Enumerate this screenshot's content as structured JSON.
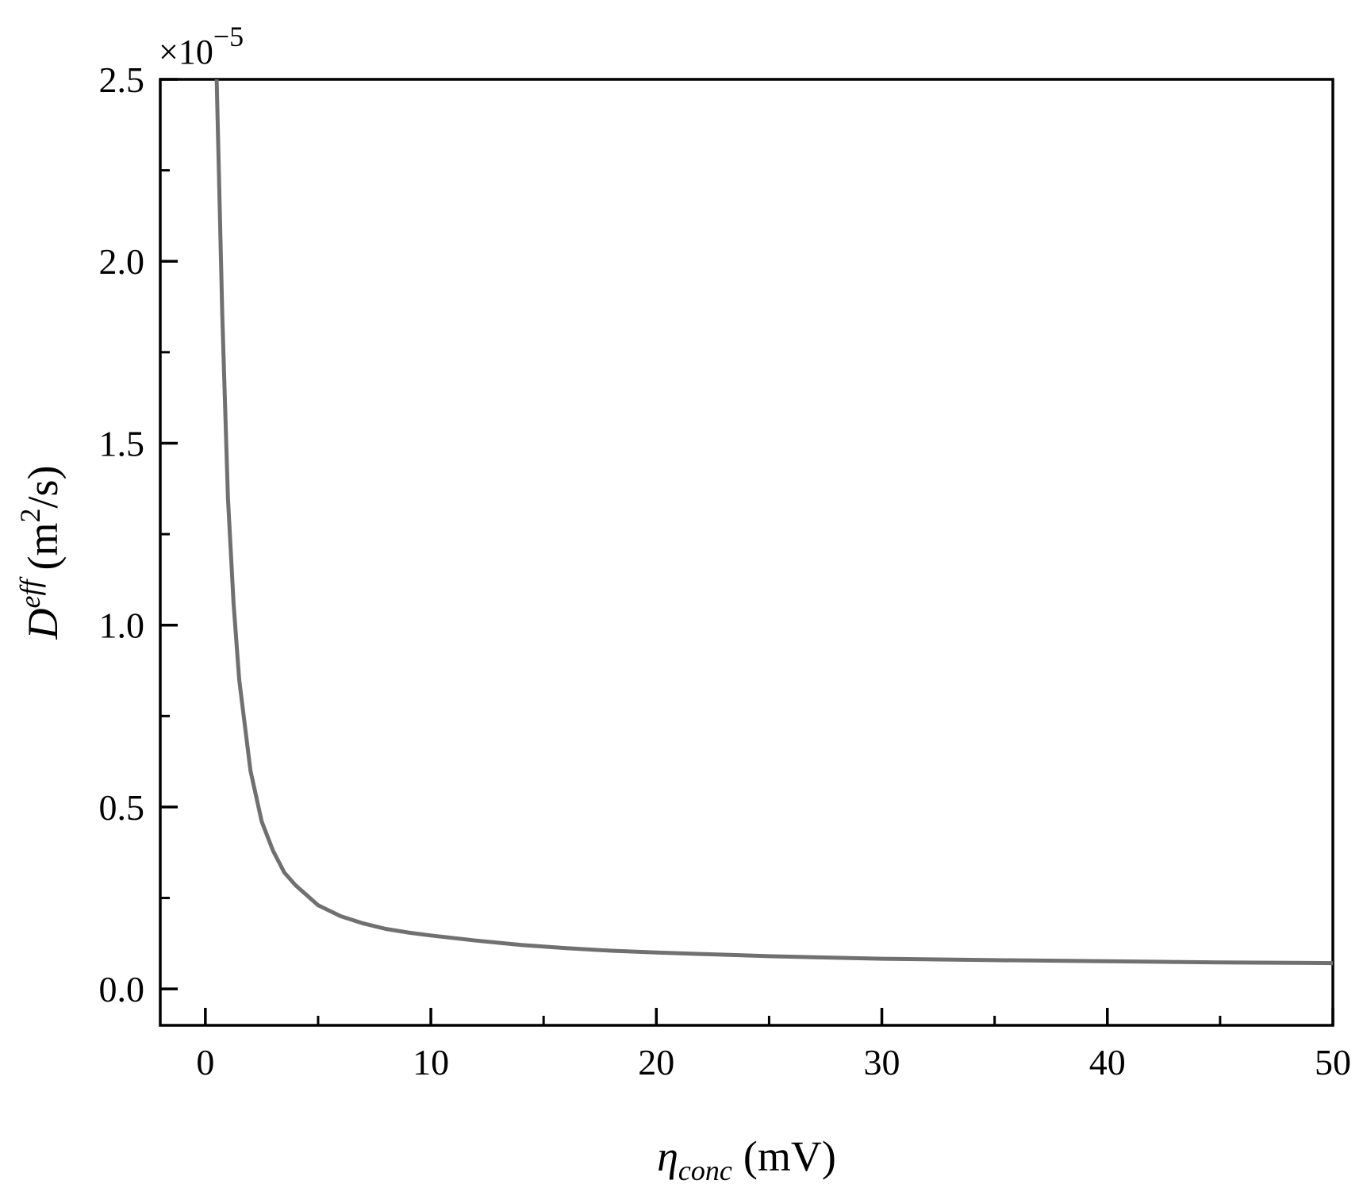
{
  "chart_data": {
    "type": "line",
    "title": "",
    "xlabel": {
      "symbol": "η",
      "subscript": "conc",
      "unit": "(mV)"
    },
    "ylabel": {
      "symbol": "D",
      "superscript": "eff",
      "unit_pre": "(m",
      "unit_sup": "2",
      "unit_post": "/s)"
    },
    "y_multiplier": {
      "base": "×10",
      "exponent": "−5"
    },
    "xlim": [
      -2,
      50
    ],
    "ylim": [
      -0.1,
      2.5
    ],
    "x_ticks": [
      0,
      10,
      20,
      30,
      40,
      50
    ],
    "x_tick_labels": [
      "0",
      "10",
      "20",
      "30",
      "40",
      "50"
    ],
    "x_minor_ticks": [
      5,
      15,
      25,
      35,
      45
    ],
    "y_ticks": [
      0,
      0.5,
      1.0,
      1.5,
      2.0,
      2.5
    ],
    "y_tick_labels": [
      "0.0",
      "0.5",
      "1.0",
      "1.5",
      "2.0",
      "2.5"
    ],
    "y_minor_ticks": [
      0.25,
      0.75,
      1.25,
      1.75,
      2.25
    ],
    "grid": false,
    "series": [
      {
        "color": "#707070",
        "x": [
          0.5,
          0.75,
          1.0,
          1.25,
          1.5,
          2.0,
          2.5,
          3,
          3.5,
          4,
          5,
          6,
          7,
          8,
          9,
          10,
          12,
          14,
          16,
          18,
          20,
          25,
          30,
          35,
          40,
          45,
          50
        ],
        "y": [
          2.5,
          1.85,
          1.35,
          1.06,
          0.85,
          0.6,
          0.46,
          0.38,
          0.32,
          0.285,
          0.23,
          0.2,
          0.18,
          0.165,
          0.155,
          0.147,
          0.133,
          0.121,
          0.112,
          0.105,
          0.1,
          0.09,
          0.083,
          0.079,
          0.076,
          0.073,
          0.071
        ]
      }
    ]
  }
}
